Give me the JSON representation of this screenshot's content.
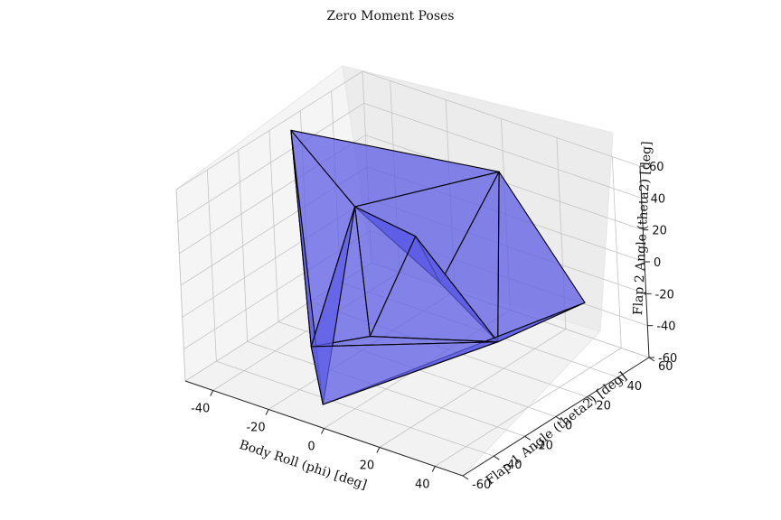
{
  "chart_data": {
    "type": "surface3d",
    "title": "Zero Moment Poses",
    "xlabel": "Body Roll (phi) [deg]",
    "ylabel": "Flap 1 Angle (theta2) [deg]",
    "zlabel": "Flap 2 Angle (theta2) [deg]",
    "xlim": [
      -50,
      50
    ],
    "ylim": [
      -60,
      60
    ],
    "zlim": [
      -60,
      60
    ],
    "xticks": [
      "-40",
      "-20",
      "0",
      "20",
      "40"
    ],
    "yticks": [
      "-60",
      "-40",
      "-20",
      "0",
      "20",
      "40",
      "60"
    ],
    "zticks": [
      "-60",
      "-40",
      "-20",
      "0",
      "20",
      "40",
      "60"
    ],
    "grid": true,
    "surface_color": "#5c5ce6",
    "edge_color": "#000000",
    "vertices": [
      [
        -45,
        5,
        60
      ],
      [
        10,
        40,
        45
      ],
      [
        -20,
        0,
        30
      ],
      [
        45,
        30,
        -10
      ],
      [
        30,
        0,
        -25
      ],
      [
        0,
        -60,
        -45
      ],
      [
        10,
        0,
        0
      ],
      [
        -10,
        20,
        5
      ],
      [
        -5,
        -20,
        -30
      ],
      [
        -15,
        -40,
        -30
      ]
    ],
    "triangles": [
      [
        0,
        1,
        2
      ],
      [
        2,
        1,
        6
      ],
      [
        1,
        6,
        4
      ],
      [
        1,
        3,
        4
      ],
      [
        2,
        6,
        7
      ],
      [
        7,
        6,
        4
      ],
      [
        2,
        7,
        8
      ],
      [
        7,
        4,
        8
      ],
      [
        2,
        8,
        9
      ],
      [
        8,
        4,
        9
      ],
      [
        9,
        4,
        5
      ],
      [
        3,
        4,
        5
      ],
      [
        0,
        2,
        9
      ],
      [
        0,
        9,
        5
      ],
      [
        2,
        5,
        9
      ]
    ]
  }
}
